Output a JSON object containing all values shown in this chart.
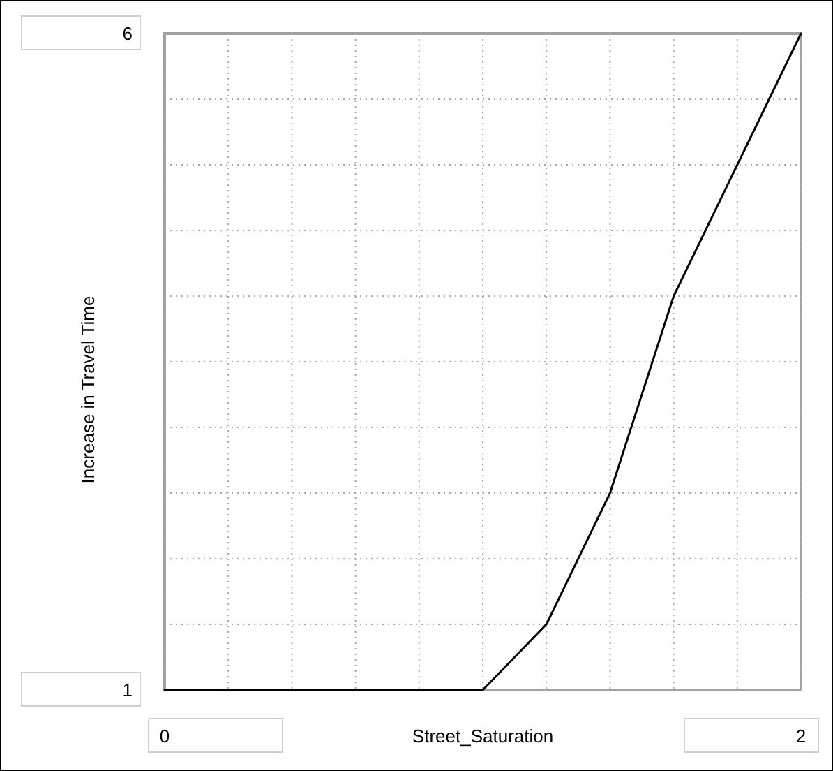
{
  "chart_data": {
    "type": "line",
    "xlabel": "Street_Saturation",
    "ylabel": "Increase in Travel Time",
    "x": [
      0,
      1,
      1.2,
      1.4,
      1.6,
      1.8,
      2
    ],
    "series": [
      {
        "color": "#000000",
        "values": [
          1,
          1,
          1.5,
          2.5,
          4,
          5,
          6
        ]
      }
    ],
    "xlim": [
      0,
      2
    ],
    "ylim": [
      1,
      6
    ],
    "xticks": [
      0,
      {
        "value": 0.2,
        "label": null
      },
      {
        "value": 0.4,
        "label": null
      },
      {
        "value": 0.6,
        "label": null
      },
      {
        "value": 0.8,
        "label": null
      },
      {
        "value": 1,
        "label": null
      },
      {
        "value": 1.2,
        "label": null
      },
      {
        "value": 1.4,
        "label": null
      },
      {
        "value": 1.6,
        "label": null
      },
      {
        "value": 1.8,
        "label": null
      },
      2
    ],
    "yticks": [
      1,
      {
        "value": 1.5,
        "label": null
      },
      {
        "value": 2,
        "label": null
      },
      {
        "value": 2.5,
        "label": null
      },
      {
        "value": 3,
        "label": null
      },
      {
        "value": 3.5,
        "label": null
      },
      {
        "value": 4,
        "label": null
      },
      {
        "value": 4.5,
        "label": null
      },
      {
        "value": 5,
        "label": null
      },
      {
        "value": 5.5,
        "label": null
      },
      6
    ],
    "grid": true,
    "marker": "none",
    "line_style": "solid"
  }
}
